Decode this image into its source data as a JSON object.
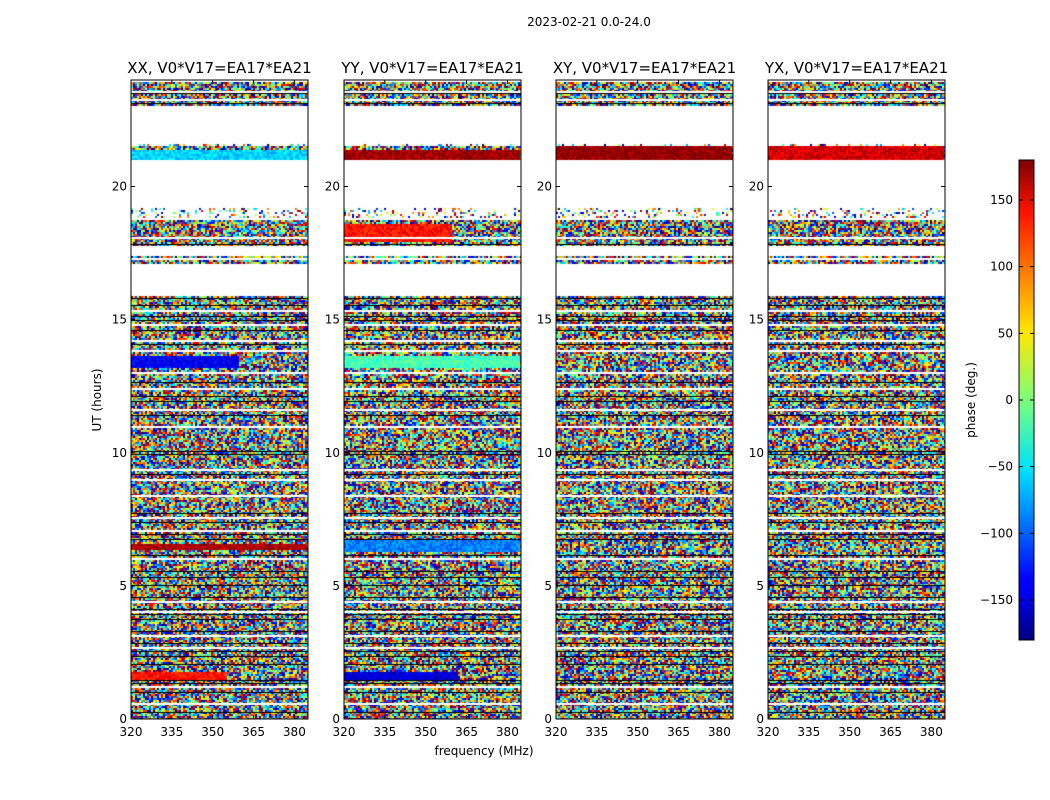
{
  "chart_data": {
    "type": "heatmap",
    "title": "2023-02-21 0.0-24.0",
    "xlabel": "frequency (MHz)",
    "ylabel": "UT (hours)",
    "xlim": [
      320,
      385
    ],
    "ylim": [
      0,
      24
    ],
    "xticks": [
      320,
      335,
      350,
      365,
      380
    ],
    "yticks": [
      0,
      5,
      10,
      15,
      20
    ],
    "colorbar": {
      "label": "phase (deg.)",
      "range": [
        -180,
        180
      ],
      "ticks": [
        -150,
        -100,
        -50,
        0,
        50,
        100,
        150
      ],
      "colormap": "jet"
    },
    "panels": [
      {
        "title": "XX, V0*V17=EA17*EA21",
        "feature": "narrowband phase stripes near 1.6 h, 6.5 h, 13.4 h, 21.2 h; otherwise random phase"
      },
      {
        "title": "YY, V0*V17=EA17*EA21",
        "feature": "narrowband phase stripes near 1.6 h, 6.5 h, 13.4 h, 18.3 h, 21.2 h; otherwise random phase"
      },
      {
        "title": "XY, V0*V17=EA17*EA21",
        "feature": "mostly random phase with strip near 21.3 h"
      },
      {
        "title": "YX, V0*V17=EA17*EA21",
        "feature": "mostly random phase with strip near 21.3 h"
      }
    ],
    "blank_ut_ranges": [
      [
        15.9,
        16.1
      ],
      [
        16.1,
        17.1
      ],
      [
        17.4,
        17.8
      ],
      [
        19.2,
        21.0
      ],
      [
        21.6,
        23.0
      ]
    ],
    "bands": [
      {
        "panel": 0,
        "ut": [
          1.5,
          1.75
        ],
        "freq": [
          320,
          355
        ],
        "phase": 130
      },
      {
        "panel": 0,
        "ut": [
          6.35,
          6.6
        ],
        "freq": [
          320,
          385
        ],
        "phase": 165
      },
      {
        "panel": 0,
        "ut": [
          13.2,
          13.6
        ],
        "freq": [
          320,
          360
        ],
        "phase": -140
      },
      {
        "panel": 0,
        "ut": [
          21.0,
          21.4
        ],
        "freq": [
          320,
          385
        ],
        "phase": -60
      },
      {
        "panel": 1,
        "ut": [
          1.5,
          1.8
        ],
        "freq": [
          320,
          362
        ],
        "phase": -150
      },
      {
        "panel": 1,
        "ut": [
          6.3,
          6.7
        ],
        "freq": [
          320,
          385
        ],
        "phase": -90
      },
      {
        "panel": 1,
        "ut": [
          13.2,
          13.6
        ],
        "freq": [
          320,
          385
        ],
        "phase": -20
      },
      {
        "panel": 1,
        "ut": [
          17.9,
          18.6
        ],
        "freq": [
          320,
          360
        ],
        "phase": 130
      },
      {
        "panel": 1,
        "ut": [
          21.0,
          21.4
        ],
        "freq": [
          320,
          385
        ],
        "phase": 170
      },
      {
        "panel": 2,
        "ut": [
          21.0,
          21.5
        ],
        "freq": [
          320,
          385
        ],
        "phase": 175
      },
      {
        "panel": 3,
        "ut": [
          21.0,
          21.5
        ],
        "freq": [
          320,
          385
        ],
        "phase": 150
      }
    ]
  }
}
